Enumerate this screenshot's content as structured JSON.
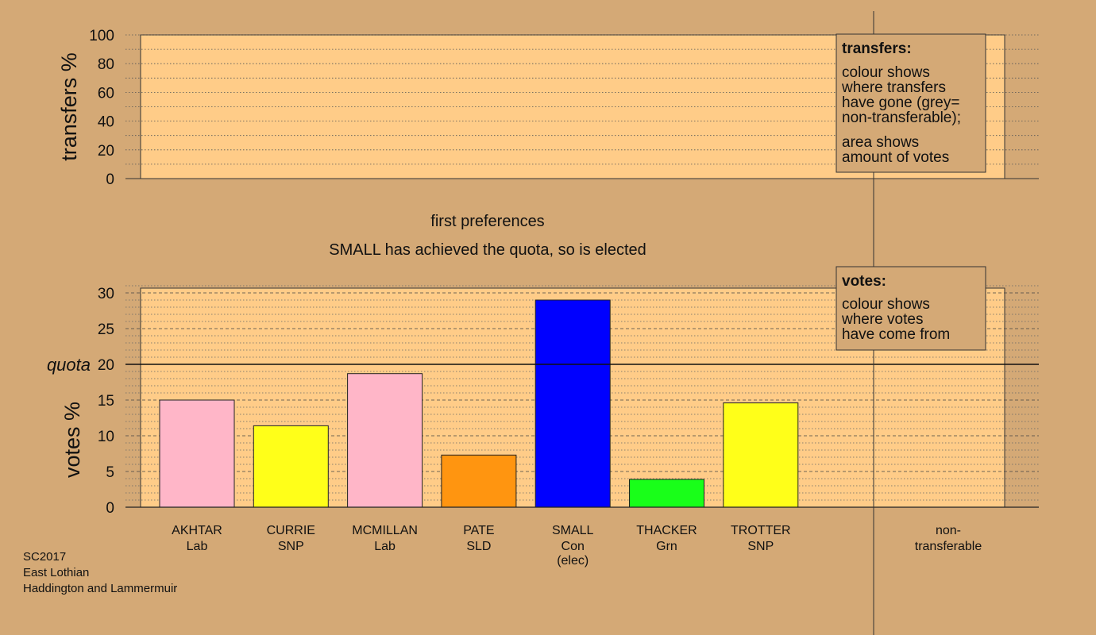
{
  "header": {
    "stage_label": "first preferences",
    "status": "SMALL has achieved the quota, so is elected"
  },
  "transfers_box": {
    "title": "transfers:",
    "lines_a": [
      "colour shows",
      "where transfers",
      "have gone (grey=",
      "non-transferable);"
    ],
    "lines_b": [
      "area shows",
      "amount of votes"
    ]
  },
  "votes_box": {
    "title": "votes:",
    "lines": [
      "colour shows",
      "where votes",
      "have come from"
    ]
  },
  "footer": {
    "line1": "SC2017",
    "line2": "East Lothian",
    "line3": "Haddington and Lammermuir"
  },
  "chart_data": [
    {
      "type": "bar",
      "ylabel": "transfers %",
      "ylim": [
        0,
        100
      ],
      "yticks": [
        "0",
        "20",
        "40",
        "60",
        "80",
        "100"
      ],
      "grid": true,
      "values": []
    },
    {
      "type": "bar",
      "ylabel": "votes %",
      "ylim": [
        0,
        30
      ],
      "yticks": [
        "0",
        "5",
        "10",
        "15",
        "20",
        "25",
        "30"
      ],
      "grid": true,
      "quota": 20,
      "quota_label": "quota",
      "categories": [
        {
          "name": "AKHTAR",
          "party": "Lab",
          "note": ""
        },
        {
          "name": "CURRIE",
          "party": "SNP",
          "note": ""
        },
        {
          "name": "MCMILLAN",
          "party": "Lab",
          "note": ""
        },
        {
          "name": "PATE",
          "party": "SLD",
          "note": ""
        },
        {
          "name": "SMALL",
          "party": "Con",
          "note": "(elec)"
        },
        {
          "name": "THACKER",
          "party": "Grn",
          "note": ""
        },
        {
          "name": "TROTTER",
          "party": "SNP",
          "note": ""
        }
      ],
      "values": [
        15.0,
        11.4,
        18.7,
        7.3,
        29.0,
        3.9,
        14.6
      ],
      "colors": [
        "#ffb6c8",
        "#ffff19",
        "#ffb6c8",
        "#ff9510",
        "#0000ff",
        "#19ff19",
        "#ffff19"
      ],
      "extra_category": {
        "line1": "non-",
        "line2": "transferable"
      }
    }
  ]
}
